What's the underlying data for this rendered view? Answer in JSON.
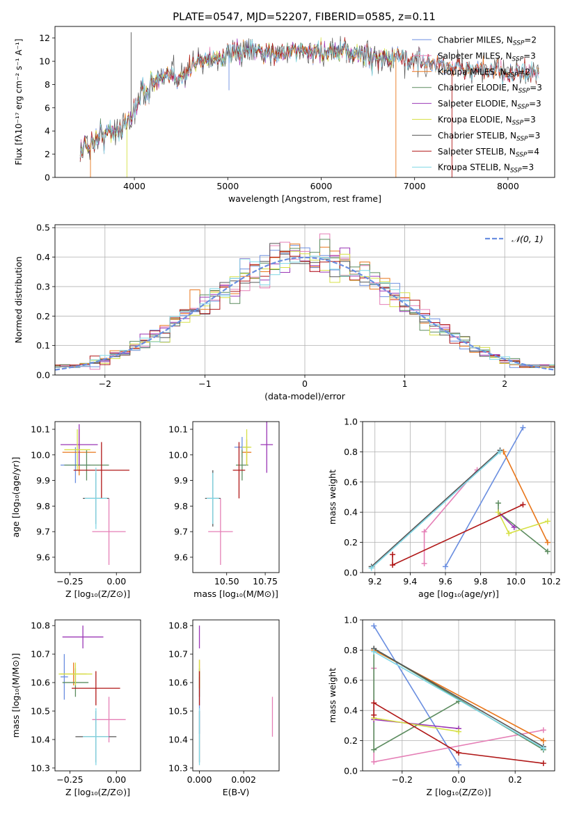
{
  "title": "PLATE=0547, MJD=52207, FIBERID=0585, z=0.11",
  "colors": {
    "Chabrier MILES": "#6a8ee0",
    "Salpeter MILES": "#e57fb6",
    "Kroupa MILES": "#e8761a",
    "Chabrier ELODIE": "#5c8c5f",
    "Salpeter ELODIE": "#9a35b5",
    "Kroupa ELODIE": "#d6e046",
    "Chabrier STELIB": "#555555",
    "Salpeter STELIB": "#b01717",
    "Kroupa STELIB": "#7fd7e6"
  },
  "chart_data": [
    {
      "id": "spectrum",
      "type": "line",
      "xlabel": "wavelength [Angstrom, rest frame]",
      "ylabel": "Flux [fλ10⁻¹⁷ erg cm⁻² s⁻¹ A⁻¹]",
      "xlim": [
        3150,
        8500
      ],
      "ylim": [
        0,
        13
      ],
      "xticks": [
        4000,
        5000,
        6000,
        7000,
        8000
      ],
      "yticks": [
        0,
        2,
        4,
        6,
        8,
        10,
        12
      ],
      "legend_position": "right",
      "series": [
        {
          "name": "Chabrier MILES, N_SSP=2"
        },
        {
          "name": "Salpeter MILES, N_SSP=3"
        },
        {
          "name": "Kroupa MILES, N_SSP=2"
        },
        {
          "name": "Chabrier ELODIE, N_SSP=3"
        },
        {
          "name": "Salpeter ELODIE, N_SSP=3"
        },
        {
          "name": "Kroupa ELODIE, N_SSP=3"
        },
        {
          "name": "Chabrier STELIB, N_SSP=3"
        },
        {
          "name": "Salpeter STELIB, N_SSP=4"
        },
        {
          "name": "Kroupa STELIB, N_SSP=3"
        }
      ],
      "legend_labels": [
        {
          "model": "Chabrier MILES",
          "pre": "Chabrier MILES, N",
          "val": "2"
        },
        {
          "model": "Salpeter MILES",
          "pre": "Salpeter MILES, N",
          "val": "3"
        },
        {
          "model": "Kroupa MILES",
          "pre": "Kroupa MILES, N",
          "val": "2"
        },
        {
          "model": "Chabrier ELODIE",
          "pre": "Chabrier ELODIE, N",
          "val": "3"
        },
        {
          "model": "Salpeter ELODIE",
          "pre": "Salpeter ELODIE, N",
          "val": "3"
        },
        {
          "model": "Kroupa ELODIE",
          "pre": "Kroupa ELODIE, N",
          "val": "3"
        },
        {
          "model": "Chabrier STELIB",
          "pre": "Chabrier STELIB, N",
          "val": "3"
        },
        {
          "model": "Salpeter STELIB",
          "pre": "Salpeter STELIB, N",
          "val": "4"
        },
        {
          "model": "Kroupa STELIB",
          "pre": "Kroupa STELIB, N",
          "val": "3"
        }
      ],
      "continuum_knots": [
        [
          3420,
          2.3
        ],
        [
          3600,
          3.4
        ],
        [
          3800,
          4.1
        ],
        [
          3950,
          4.8
        ],
        [
          4050,
          7.0
        ],
        [
          4200,
          8.2
        ],
        [
          4350,
          8.5
        ],
        [
          4550,
          8.9
        ],
        [
          4700,
          10.2
        ],
        [
          4900,
          10.3
        ],
        [
          5100,
          10.7
        ],
        [
          5300,
          10.9
        ],
        [
          5500,
          10.7
        ],
        [
          5700,
          10.9
        ],
        [
          6000,
          10.8
        ],
        [
          6300,
          10.7
        ],
        [
          6600,
          10.4
        ],
        [
          6900,
          10.2
        ],
        [
          7200,
          9.8
        ],
        [
          7500,
          9.4
        ],
        [
          7800,
          9.1
        ],
        [
          8100,
          9.0
        ],
        [
          8300,
          8.7
        ]
      ],
      "features": [
        [
          3530,
          0.0
        ],
        [
          3920,
          0.0
        ],
        [
          3965,
          2.6
        ],
        [
          6800,
          0.0
        ],
        [
          7400,
          0.0
        ],
        [
          5013,
          7.5
        ],
        [
          4400,
          8.7
        ],
        [
          5180,
          12.1
        ],
        [
          3700,
          4.5
        ],
        [
          4860,
          10.6
        ]
      ]
    },
    {
      "id": "residuals",
      "type": "histogram",
      "xlabel": "(data-model)/error",
      "ylabel": "Normed distribution",
      "xlim": [
        -2.5,
        2.5
      ],
      "ylim": [
        0,
        0.51
      ],
      "xticks": [
        -2,
        -1,
        0,
        1,
        2
      ],
      "yticks": [
        0.0,
        0.1,
        0.2,
        0.3,
        0.4,
        0.5
      ],
      "grid": true,
      "bin_width": 0.1,
      "reference_curve": {
        "name": "𝒩(0, 1)",
        "color": "#6a8ee0",
        "style": "dashed"
      },
      "legend_position": "top-right"
    },
    {
      "id": "age-vs-Z",
      "type": "errorbar",
      "xlabel": "Z [log₁₀(Z/Z⊙)]",
      "ylabel": "age  [log₁₀(age/yr)]",
      "xlim": [
        -0.33,
        0.13
      ],
      "ylim": [
        9.54,
        10.13
      ],
      "xticks": [
        -0.25,
        0.0
      ],
      "yticks": [
        9.6,
        9.7,
        9.8,
        9.9,
        10.0,
        10.1
      ],
      "points": [
        {
          "model": "Chabrier MILES",
          "x": -0.22,
          "y": 9.96,
          "xerr": 0.08,
          "yerr": 0.07
        },
        {
          "model": "Salpeter MILES",
          "x": -0.04,
          "y": 9.7,
          "xerr": 0.09,
          "yerr": 0.13
        },
        {
          "model": "Kroupa MILES",
          "x": -0.2,
          "y": 10.01,
          "xerr": 0.09,
          "yerr": 0.09
        },
        {
          "model": "Chabrier ELODIE",
          "x": -0.16,
          "y": 9.96,
          "xerr": 0.12,
          "yerr": 0.06
        },
        {
          "model": "Salpeter ELODIE",
          "x": -0.2,
          "y": 10.04,
          "xerr": 0.1,
          "yerr": 0.08
        },
        {
          "model": "Kroupa ELODIE",
          "x": -0.21,
          "y": 10.02,
          "xerr": 0.07,
          "yerr": 0.08
        },
        {
          "model": "Chabrier STELIB",
          "x": -0.11,
          "y": 9.83,
          "xerr": 0.07,
          "yerr": 0.1
        },
        {
          "model": "Salpeter STELIB",
          "x": -0.08,
          "y": 9.94,
          "xerr": 0.15,
          "yerr": 0.11
        },
        {
          "model": "Kroupa STELIB",
          "x": -0.11,
          "y": 9.83,
          "xerr": 0.06,
          "yerr": 0.12
        }
      ]
    },
    {
      "id": "age-vs-mass",
      "type": "errorbar",
      "xlabel": "mass [log₁₀(M/M⊙)]",
      "ylabel": "",
      "xlim": [
        10.28,
        10.84
      ],
      "ylim": [
        9.54,
        10.13
      ],
      "xticks": [
        10.5,
        10.75
      ],
      "yticks": [
        9.6,
        9.7,
        9.8,
        9.9,
        10.0,
        10.1
      ],
      "points": [
        {
          "model": "Chabrier MILES",
          "x": 10.6,
          "y": 10.03,
          "xerr": 0.05,
          "yerr": 0.04
        },
        {
          "model": "Salpeter MILES",
          "x": 10.46,
          "y": 9.7,
          "xerr": 0.08,
          "yerr": 0.13
        },
        {
          "model": "Kroupa MILES",
          "x": 10.63,
          "y": 10.01,
          "xerr": 0.03,
          "yerr": 0.05
        },
        {
          "model": "Chabrier ELODIE",
          "x": 10.6,
          "y": 9.96,
          "xerr": 0.04,
          "yerr": 0.06
        },
        {
          "model": "Salpeter ELODIE",
          "x": 10.76,
          "y": 10.04,
          "xerr": 0.04,
          "yerr": 0.11
        },
        {
          "model": "Kroupa ELODIE",
          "x": 10.63,
          "y": 10.03,
          "xerr": 0.03,
          "yerr": 0.07
        },
        {
          "model": "Chabrier STELIB",
          "x": 10.41,
          "y": 9.83,
          "xerr": 0.05,
          "yerr": 0.11
        },
        {
          "model": "Salpeter STELIB",
          "x": 10.58,
          "y": 9.94,
          "xerr": 0.04,
          "yerr": 0.11
        },
        {
          "model": "Kroupa STELIB",
          "x": 10.41,
          "y": 9.83,
          "xerr": 0.04,
          "yerr": 0.1
        }
      ]
    },
    {
      "id": "weight-vs-age",
      "type": "line",
      "xlabel": "age  [log₁₀(age/yr)]",
      "ylabel": "mass weight",
      "xlim": [
        9.13,
        10.22
      ],
      "ylim": [
        0,
        1.0
      ],
      "xticks": [
        9.2,
        9.4,
        9.6,
        9.8,
        10.0,
        10.2
      ],
      "yticks": [
        0.0,
        0.2,
        0.4,
        0.6,
        0.8,
        1.0
      ],
      "grid": true,
      "series": [
        {
          "model": "Chabrier MILES",
          "x": [
            9.6,
            10.04
          ],
          "y": [
            0.04,
            0.96
          ]
        },
        {
          "model": "Salpeter MILES",
          "x": [
            9.48,
            9.48,
            9.78
          ],
          "y": [
            0.06,
            0.27,
            0.68
          ]
        },
        {
          "model": "Kroupa MILES",
          "x": [
            9.93,
            10.18
          ],
          "y": [
            0.8,
            0.2
          ]
        },
        {
          "model": "Chabrier ELODIE",
          "x": [
            9.9,
            9.9,
            10.18
          ],
          "y": [
            0.46,
            0.4,
            0.14
          ]
        },
        {
          "model": "Salpeter ELODIE",
          "x": [
            9.9,
            9.99
          ],
          "y": [
            0.4,
            0.3
          ]
        },
        {
          "model": "Kroupa ELODIE",
          "x": [
            9.9,
            9.96,
            10.18
          ],
          "y": [
            0.4,
            0.26,
            0.34
          ]
        },
        {
          "model": "Chabrier STELIB",
          "x": [
            9.18,
            9.91
          ],
          "y": [
            0.04,
            0.81
          ]
        },
        {
          "model": "Salpeter STELIB",
          "x": [
            9.3,
            9.3,
            10.04
          ],
          "y": [
            0.12,
            0.05,
            0.45
          ]
        },
        {
          "model": "Kroupa STELIB",
          "x": [
            9.18,
            9.91
          ],
          "y": [
            0.03,
            0.8
          ]
        }
      ]
    },
    {
      "id": "mass-vs-Z",
      "type": "errorbar",
      "xlabel": "Z [log₁₀(Z/Z⊙)]",
      "ylabel": "mass [log₁₀(M/M⊙)]",
      "xlim": [
        -0.33,
        0.13
      ],
      "ylim": [
        10.29,
        10.82
      ],
      "xticks": [
        -0.25,
        0.0
      ],
      "yticks": [
        10.3,
        10.4,
        10.5,
        10.6,
        10.7,
        10.8
      ],
      "points": [
        {
          "model": "Chabrier MILES",
          "x": -0.28,
          "y": 10.62,
          "xerr": 0.02,
          "yerr": 0.08
        },
        {
          "model": "Salpeter MILES",
          "x": -0.04,
          "y": 10.47,
          "xerr": 0.09,
          "yerr": 0.08
        },
        {
          "model": "Kroupa MILES",
          "x": -0.23,
          "y": 10.63,
          "xerr": 0.07,
          "yerr": 0.04
        },
        {
          "model": "Chabrier ELODIE",
          "x": -0.22,
          "y": 10.6,
          "xerr": 0.07,
          "yerr": 0.05
        },
        {
          "model": "Salpeter ELODIE",
          "x": -0.18,
          "y": 10.76,
          "xerr": 0.11,
          "yerr": 0.04
        },
        {
          "model": "Kroupa ELODIE",
          "x": -0.22,
          "y": 10.63,
          "xerr": 0.09,
          "yerr": 0.04
        },
        {
          "model": "Chabrier STELIB",
          "x": -0.11,
          "y": 10.41,
          "xerr": 0.11,
          "yerr": 0.09
        },
        {
          "model": "Salpeter STELIB",
          "x": -0.11,
          "y": 10.58,
          "xerr": 0.13,
          "yerr": 0.06
        },
        {
          "model": "Kroupa STELIB",
          "x": -0.11,
          "y": 10.41,
          "xerr": 0.07,
          "yerr": 0.1
        }
      ]
    },
    {
      "id": "mass-vs-ebv",
      "type": "errorbar",
      "xlabel": "E(B-V)",
      "ylabel": "",
      "xlim": [
        -0.0003,
        0.0036
      ],
      "ylim": [
        10.29,
        10.82
      ],
      "xticks": [
        0.0,
        0.002
      ],
      "yticks": [
        10.3,
        10.4,
        10.5,
        10.6,
        10.7,
        10.8
      ],
      "points": [
        {
          "model": "Chabrier MILES",
          "x": 0.0,
          "y": 10.52,
          "xerr": 0,
          "yerr": 0.1
        },
        {
          "model": "Salpeter MILES",
          "x": 0.0033,
          "y": 10.48,
          "xerr": 0,
          "yerr": 0.07
        },
        {
          "model": "Kroupa MILES",
          "x": 0.0,
          "y": 10.63,
          "xerr": 0,
          "yerr": 0.05
        },
        {
          "model": "Chabrier ELODIE",
          "x": 0.0,
          "y": 10.6,
          "xerr": 0,
          "yerr": 0.05
        },
        {
          "model": "Salpeter ELODIE",
          "x": 0.0,
          "y": 10.76,
          "xerr": 0,
          "yerr": 0.04
        },
        {
          "model": "Kroupa ELODIE",
          "x": 0.0,
          "y": 10.63,
          "xerr": 0,
          "yerr": 0.05
        },
        {
          "model": "Chabrier STELIB",
          "x": 0.0,
          "y": 10.41,
          "xerr": 0,
          "yerr": 0.09
        },
        {
          "model": "Salpeter STELIB",
          "x": 0.0,
          "y": 10.58,
          "xerr": 0,
          "yerr": 0.06
        },
        {
          "model": "Kroupa STELIB",
          "x": 0.0,
          "y": 10.41,
          "xerr": 0,
          "yerr": 0.1
        }
      ]
    },
    {
      "id": "weight-vs-Z",
      "type": "line",
      "xlabel": "Z [log₁₀(Z/Z⊙)]",
      "ylabel": "mass weight",
      "xlim": [
        -0.34,
        0.34
      ],
      "ylim": [
        0,
        1.0
      ],
      "xticks": [
        -0.2,
        0.0,
        0.2
      ],
      "yticks": [
        0.0,
        0.2,
        0.4,
        0.6,
        0.8,
        1.0
      ],
      "grid": true,
      "series": [
        {
          "model": "Chabrier MILES",
          "x": [
            -0.3,
            0.0
          ],
          "y": [
            0.96,
            0.04
          ]
        },
        {
          "model": "Salpeter MILES",
          "x": [
            -0.3,
            -0.3,
            0.3
          ],
          "y": [
            0.68,
            0.06,
            0.27
          ]
        },
        {
          "model": "Kroupa MILES",
          "x": [
            -0.3,
            0.3
          ],
          "y": [
            0.8,
            0.2
          ]
        },
        {
          "model": "Chabrier ELODIE",
          "x": [
            0.0,
            -0.3,
            -0.3,
            0.3
          ],
          "y": [
            0.46,
            0.14,
            0.81,
            0.14
          ]
        },
        {
          "model": "Salpeter ELODIE",
          "x": [
            -0.3,
            0.0
          ],
          "y": [
            0.34,
            0.28
          ]
        },
        {
          "model": "Kroupa ELODIE",
          "x": [
            -0.3,
            0.0
          ],
          "y": [
            0.35,
            0.26
          ]
        },
        {
          "model": "Chabrier STELIB",
          "x": [
            -0.3,
            0.3
          ],
          "y": [
            0.81,
            0.16
          ]
        },
        {
          "model": "Salpeter STELIB",
          "x": [
            -0.3,
            -0.3,
            0.0,
            0.3
          ],
          "y": [
            0.37,
            0.45,
            0.12,
            0.05
          ]
        },
        {
          "model": "Kroupa STELIB",
          "x": [
            -0.3,
            0.3
          ],
          "y": [
            0.79,
            0.15
          ]
        }
      ]
    }
  ]
}
